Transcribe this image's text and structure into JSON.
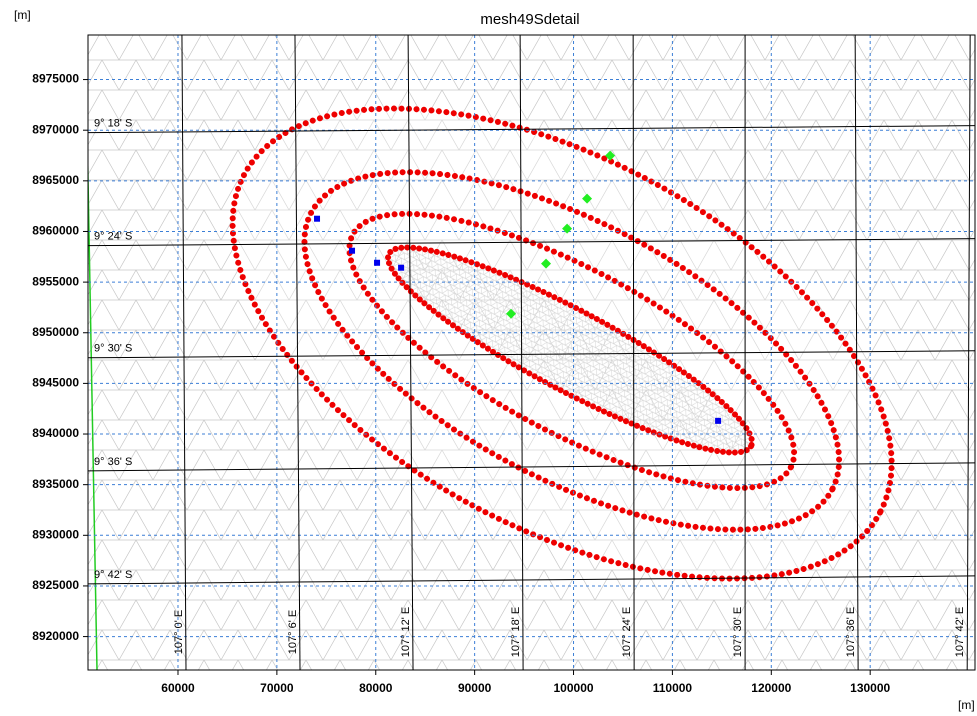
{
  "chart_data": {
    "type": "map",
    "title": "mesh49Sdetail",
    "y_unit": "[m]",
    "x_unit": "[m]",
    "xlim": [
      50900,
      140600
    ],
    "ylim": [
      8916700,
      8979400
    ],
    "xticks": [
      60000,
      70000,
      80000,
      90000,
      100000,
      110000,
      120000,
      130000
    ],
    "yticks": [
      8920000,
      8925000,
      8930000,
      8935000,
      8940000,
      8945000,
      8950000,
      8955000,
      8960000,
      8965000,
      8970000,
      8975000
    ],
    "grid": true,
    "grid_color": "#3c7fd6",
    "parallels": [
      {
        "label": "9° 18' S",
        "y_left": 8969760,
        "y_right": 8970450
      },
      {
        "label": "9° 24' S",
        "y_left": 8958600,
        "y_right": 8959290
      },
      {
        "label": "9° 30' S",
        "y_left": 8947530,
        "y_right": 8948220
      },
      {
        "label": "9° 36' S",
        "y_left": 8936360,
        "y_right": 8937150
      },
      {
        "label": "9° 42' S",
        "y_left": 8925200,
        "y_right": 8925990
      }
    ],
    "meridians": [
      {
        "label": "107° 0' E",
        "x_bottom": 60810,
        "x_top": 60400
      },
      {
        "label": "107° 6' E",
        "x_bottom": 72340,
        "x_top": 71830
      },
      {
        "label": "107° 12' E",
        "x_bottom": 83770,
        "x_top": 83270
      },
      {
        "label": "107° 18' E",
        "x_bottom": 94900,
        "x_top": 94600
      },
      {
        "label": "107° 24' E",
        "x_bottom": 106130,
        "x_top": 106030
      },
      {
        "label": "107° 30' E",
        "x_bottom": 117350,
        "x_top": 117350
      },
      {
        "label": "107° 36' E",
        "x_bottom": 128780,
        "x_top": 128480
      },
      {
        "label": "107° 42' E",
        "x_bottom": 139810,
        "x_top": 140110
      }
    ],
    "series": [
      {
        "color": "#22ee22",
        "x": [
          103700,
          101370,
          99350,
          97220,
          93680
        ],
        "y": [
          8967490,
          8963240,
          8960280,
          8956820,
          8951880
        ]
      },
      {
        "color": "#0000ee",
        "x": [
          74060,
          77600,
          80130,
          82560,
          114620
        ],
        "y": [
          8961260,
          8958100,
          8956910,
          8956420,
          8941300
        ]
      }
    ]
  }
}
